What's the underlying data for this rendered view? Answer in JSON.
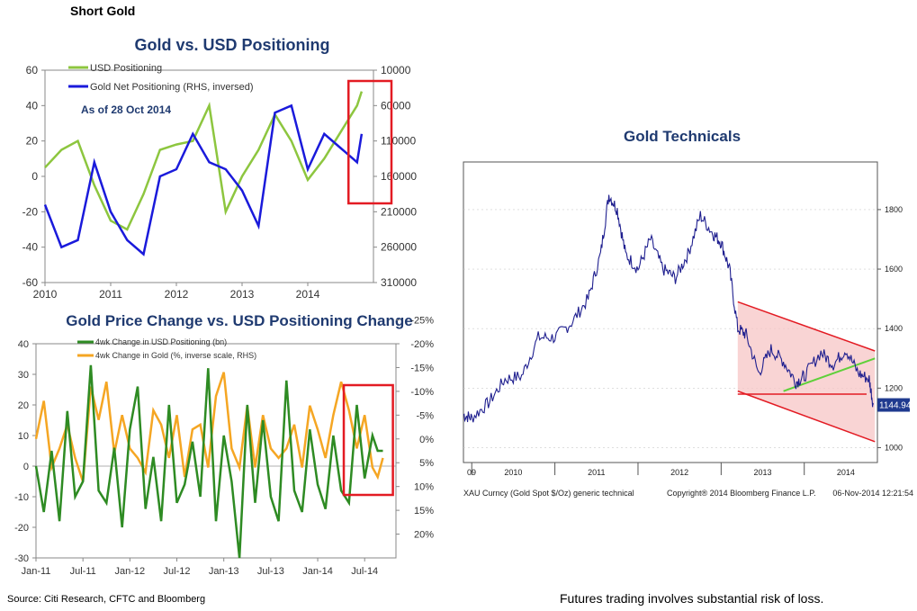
{
  "page": {
    "top_title": "Short Gold",
    "source": "Source: Citi Research, CFTC and Bloomberg",
    "disclaimer": "Futures trading involves substantial risk of loss."
  },
  "colors": {
    "green": "#8dc63f",
    "blue": "#1a1adb",
    "dark_green": "#2e8b23",
    "orange": "#f5a623",
    "red": "#e31b23",
    "navy": "#1f3a70",
    "bbg_line": "#1f1f8f"
  },
  "chart_data": [
    {
      "id": "positioning",
      "type": "line",
      "title": "Gold vs. USD Positioning",
      "annotation": "As of 28 Oct 2014",
      "x": [
        2010.0,
        2010.25,
        2010.5,
        2010.75,
        2011.0,
        2011.25,
        2011.5,
        2011.75,
        2012.0,
        2012.25,
        2012.5,
        2012.75,
        2013.0,
        2013.25,
        2013.5,
        2013.75,
        2014.0,
        2014.25,
        2014.5,
        2014.75,
        2014.82
      ],
      "x_ticks": [
        "2010",
        "2011",
        "2012",
        "2013",
        "2014"
      ],
      "xlim": [
        2010.0,
        2015.0
      ],
      "ylim_left": [
        -60,
        60
      ],
      "y_ticks_left": [
        "60",
        "40",
        "20",
        "0",
        "-20",
        "-40",
        "-60"
      ],
      "ylim_right_inversed": [
        10000,
        310000
      ],
      "y_ticks_right": [
        "10000",
        "60000",
        "110000",
        "160000",
        "210000",
        "260000",
        "310000"
      ],
      "series": [
        {
          "name": "USD Positioning",
          "axis": "left",
          "values": [
            5,
            15,
            20,
            -5,
            -25,
            -30,
            -10,
            15,
            18,
            20,
            40,
            -20,
            0,
            15,
            35,
            20,
            -2,
            10,
            25,
            40,
            48
          ]
        },
        {
          "name": "Gold Net Positioning (RHS, inversed)",
          "axis": "right",
          "values": [
            200000,
            260000,
            250000,
            140000,
            210000,
            250000,
            270000,
            160000,
            150000,
            100000,
            140000,
            150000,
            180000,
            230000,
            70000,
            60000,
            150000,
            100000,
            120000,
            140000,
            100000
          ]
        }
      ],
      "highlight": {
        "x_from": 2014.62,
        "x_to": 2015.0
      }
    },
    {
      "id": "changes",
      "type": "line",
      "title": "Gold Price Change vs. USD Positioning Change",
      "x": [
        0,
        3,
        6,
        9,
        12,
        15,
        18,
        21,
        24,
        27,
        30,
        33,
        36,
        39,
        42,
        45,
        48,
        51,
        54,
        57,
        60,
        63,
        66,
        69,
        72,
        75,
        78,
        81,
        84,
        87,
        90,
        93,
        96,
        99,
        102,
        105,
        108,
        111,
        114,
        117,
        120,
        123,
        126,
        129,
        131,
        133
      ],
      "x_ticks": [
        "Jan-11",
        "Jul-11",
        "Jan-12",
        "Jul-12",
        "Jan-13",
        "Jul-13",
        "Jan-14",
        "Jul-14"
      ],
      "xlim": [
        0,
        138
      ],
      "ylim_left": [
        -30,
        40
      ],
      "y_ticks_left": [
        "40",
        "30",
        "20",
        "10",
        "0",
        "-10",
        "-20",
        "-30"
      ],
      "ylim_right_inverse": [
        25,
        -20
      ],
      "y_ticks_right": [
        "-25%",
        "-20%",
        "-15%",
        "-10%",
        "-5%",
        "0%",
        "5%",
        "10%",
        "15%",
        "20%"
      ],
      "series": [
        {
          "name": "4wk Change in USD Positioning (bn)",
          "axis": "left",
          "values": [
            0,
            -15,
            5,
            -18,
            18,
            -10,
            -5,
            33,
            -8,
            -12,
            6,
            -20,
            12,
            26,
            -14,
            3,
            -18,
            20,
            -12,
            -6,
            8,
            -10,
            32,
            -18,
            10,
            -5,
            -30,
            20,
            -12,
            15,
            -10,
            -18,
            28,
            -8,
            -15,
            12,
            -6,
            -14,
            10,
            -8,
            -12,
            20,
            -4,
            10,
            5,
            5
          ]
        },
        {
          "name": "4wk Change in Gold (%, inverse scale, RHS)",
          "axis": "right",
          "values": [
            0,
            -8,
            6,
            2,
            -3,
            4,
            9,
            -11,
            -4,
            -12,
            3,
            -5,
            2,
            4,
            7,
            -6,
            -3,
            4,
            -5,
            8,
            -2,
            -3,
            6,
            -9,
            -14,
            2,
            6,
            -7,
            6,
            -5,
            2,
            4,
            2,
            -3,
            6,
            -7,
            -2,
            4,
            -5,
            -12,
            -6,
            2,
            -5,
            6,
            8,
            4
          ]
        }
      ],
      "highlight": {
        "x_from": 118,
        "x_to": 132
      }
    },
    {
      "id": "technicals",
      "type": "line",
      "title": "Gold Technicals",
      "x": [
        2009.9,
        2010.0,
        2010.2,
        2010.4,
        2010.6,
        2010.8,
        2011.0,
        2011.2,
        2011.4,
        2011.55,
        2011.65,
        2011.75,
        2011.85,
        2012.0,
        2012.15,
        2012.3,
        2012.45,
        2012.6,
        2012.75,
        2012.9,
        2013.0,
        2013.1,
        2013.2,
        2013.3,
        2013.45,
        2013.6,
        2013.75,
        2013.9,
        2014.0,
        2014.2,
        2014.35,
        2014.5,
        2014.65,
        2014.78,
        2014.83
      ],
      "x_ticks": [
        "09",
        "2010",
        "2011",
        "2012",
        "2013",
        "2014"
      ],
      "xlim": [
        2009.9,
        2014.88
      ],
      "ylim": [
        950,
        1960
      ],
      "y_ticks": [
        "1800",
        "1600",
        "1400",
        "1200",
        "1000"
      ],
      "series": [
        {
          "name": "XAU Curncy (Gold Spot $/Oz)",
          "values": [
            1110,
            1100,
            1150,
            1230,
            1240,
            1370,
            1370,
            1420,
            1500,
            1650,
            1850,
            1800,
            1650,
            1600,
            1700,
            1600,
            1570,
            1650,
            1780,
            1720,
            1690,
            1600,
            1400,
            1380,
            1250,
            1330,
            1290,
            1220,
            1240,
            1320,
            1280,
            1330,
            1250,
            1230,
            1145
          ]
        }
      ],
      "last_value": "1144.94",
      "footer_left": "XAU Curncy (Gold Spot   $/Oz) generic technical",
      "footer_copyright": "Copyright® 2014 Bloomberg Finance L.P.",
      "footer_time": "06-Nov-2014  12:21:54"
    }
  ]
}
